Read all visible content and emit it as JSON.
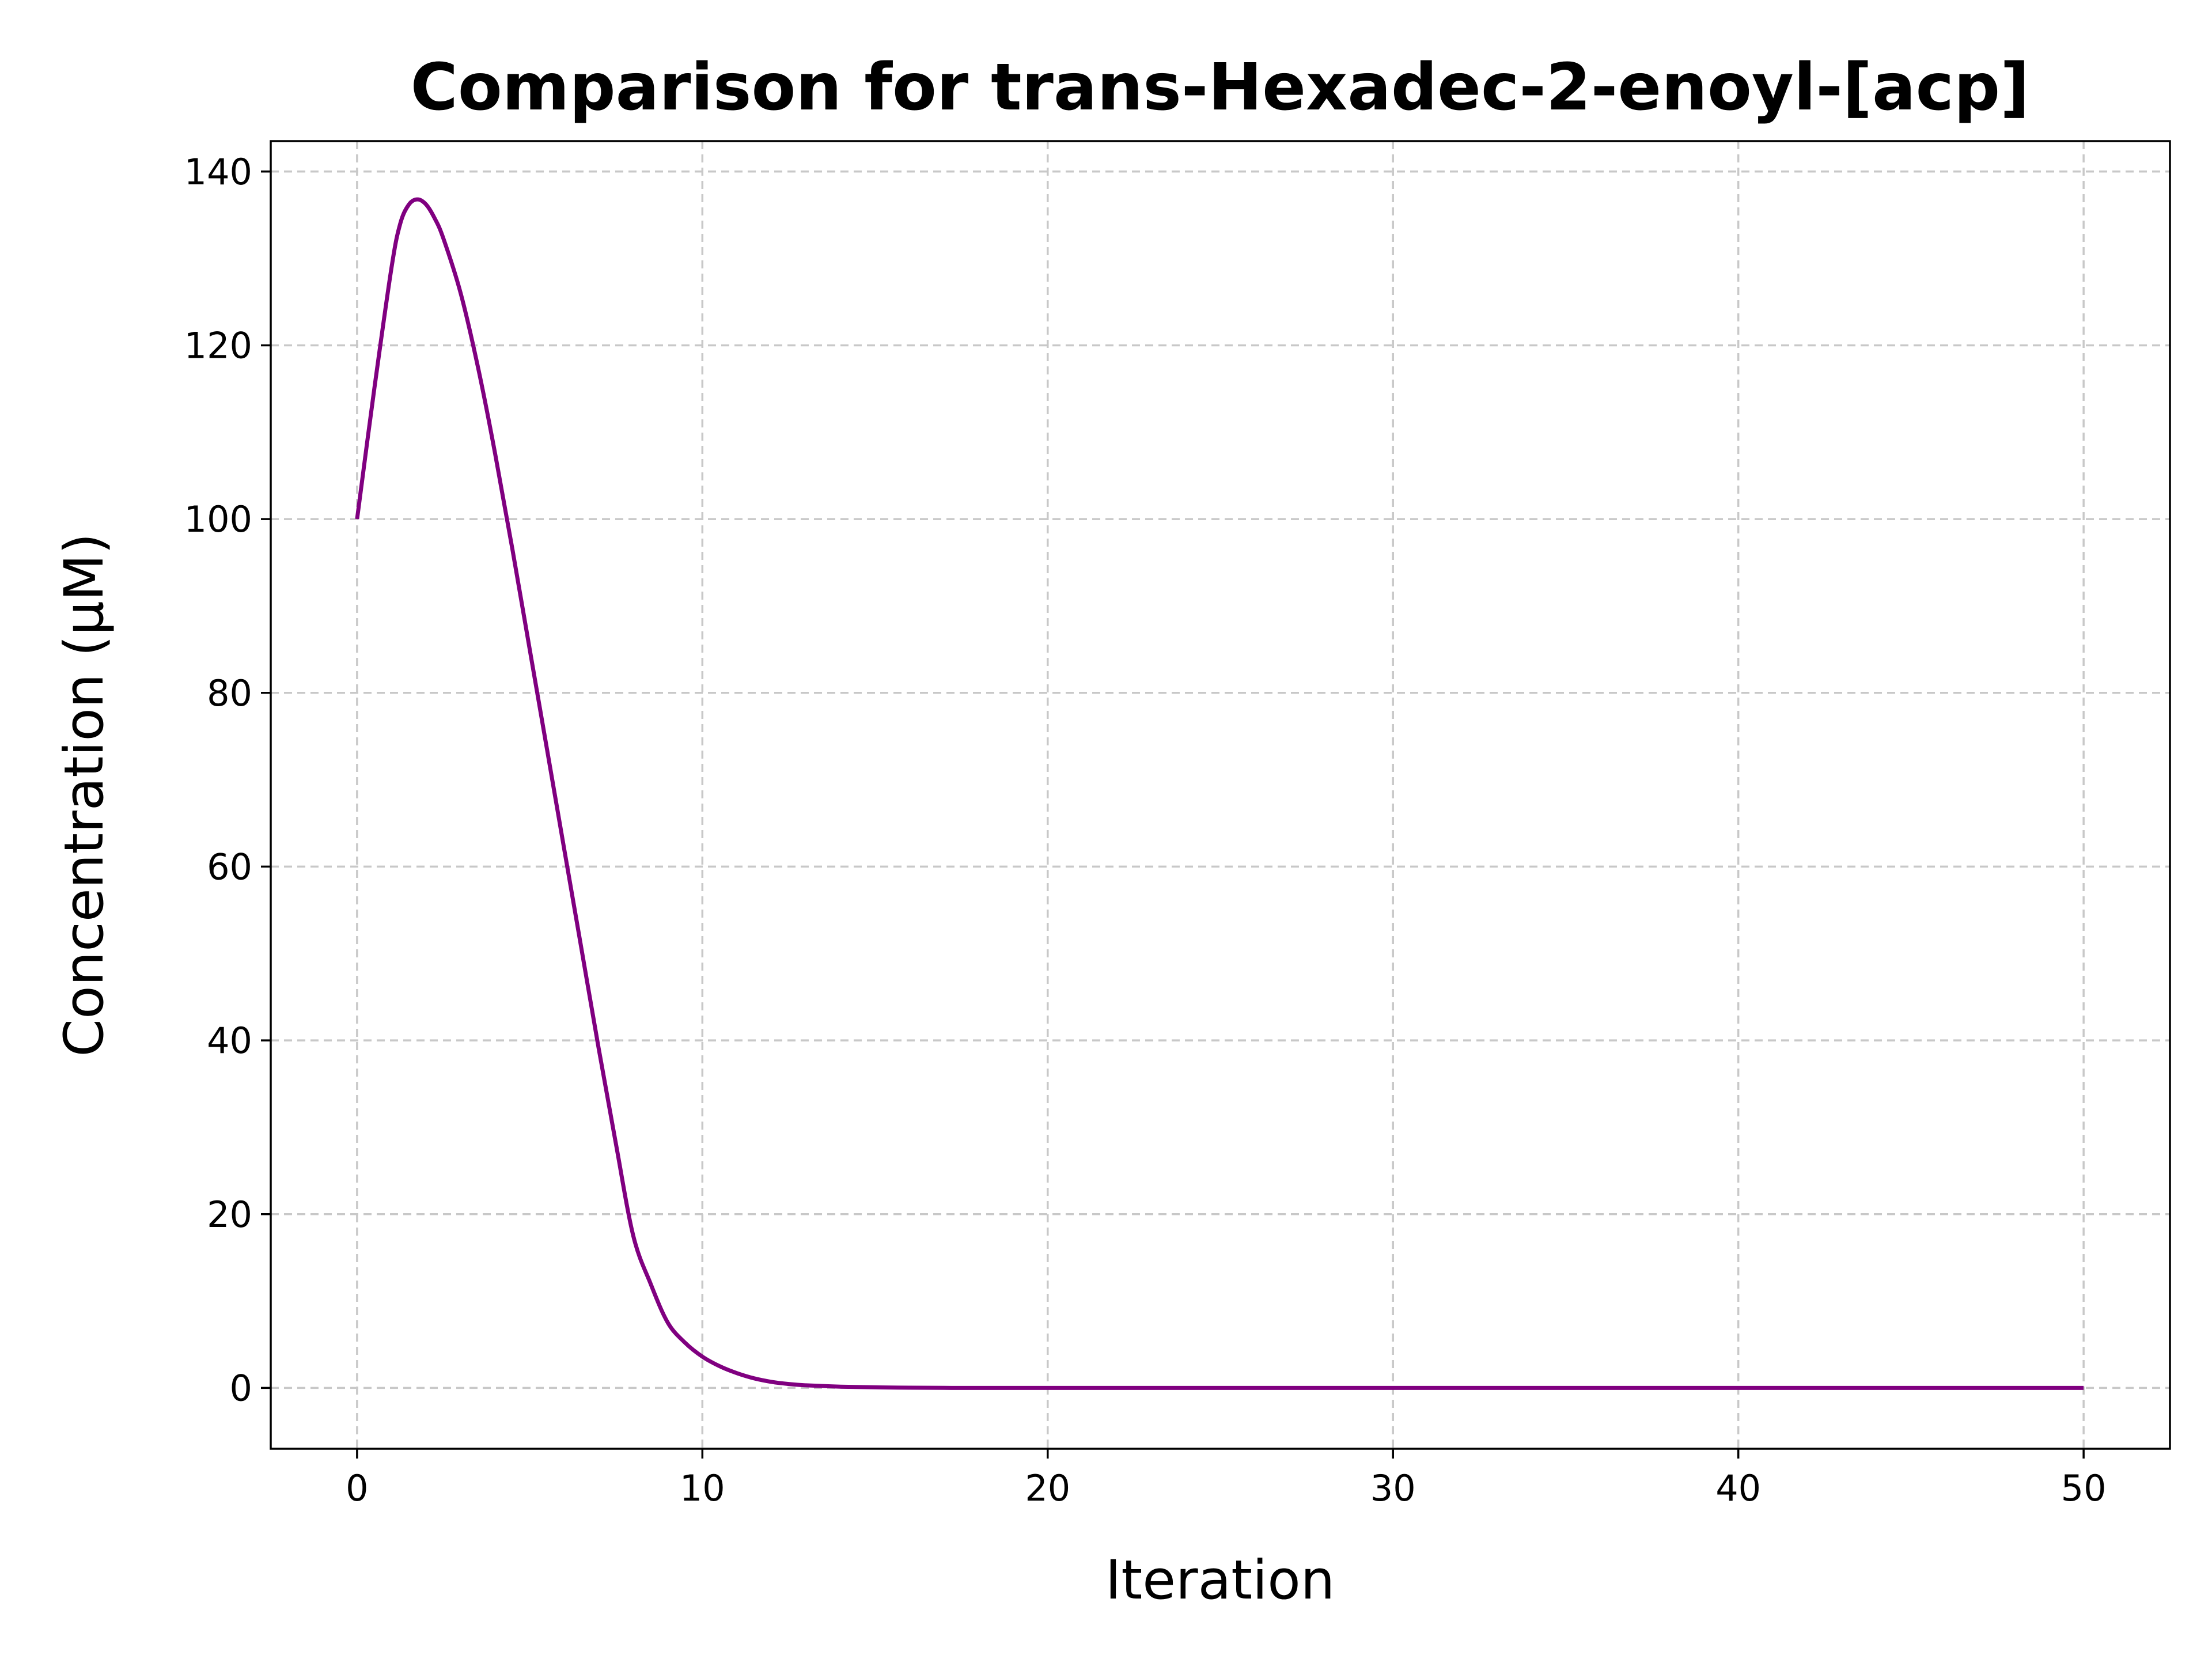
{
  "chart_data": {
    "type": "line",
    "title": "Comparison for trans-Hexadec-2-enoyl-[acp]",
    "xlabel": "Iteration",
    "ylabel": "Concentration (μM)",
    "xlim": [
      -2.5,
      52.5
    ],
    "ylim": [
      -7,
      143.5
    ],
    "xticks": [
      0,
      10,
      20,
      30,
      40,
      50
    ],
    "yticks": [
      0,
      20,
      40,
      60,
      80,
      100,
      120,
      140
    ],
    "grid": true,
    "legend": "none",
    "series": [
      {
        "color": "#800080",
        "x": [
          0,
          0.5,
          1,
          1.25,
          1.5,
          1.75,
          2,
          2.25,
          2.5,
          3,
          3.5,
          4,
          4.5,
          5,
          5.5,
          6,
          6.5,
          7,
          7.5,
          8,
          8.5,
          9,
          9.5,
          10,
          10.5,
          11,
          11.5,
          12,
          12.5,
          13,
          14,
          15,
          16,
          17,
          18,
          20,
          25,
          30,
          35,
          40,
          45,
          50
        ],
        "y": [
          100,
          115,
          129,
          134,
          136.2,
          136.8,
          136.2,
          134.6,
          132.3,
          126,
          117.5,
          107.5,
          96.5,
          85,
          73.5,
          62,
          50.5,
          39,
          28,
          17.5,
          12,
          7.5,
          5.2,
          3.6,
          2.5,
          1.7,
          1.1,
          0.7,
          0.45,
          0.3,
          0.15,
          0.07,
          0.03,
          0.01,
          0,
          0,
          0,
          0,
          0,
          0,
          0,
          0
        ]
      }
    ]
  }
}
